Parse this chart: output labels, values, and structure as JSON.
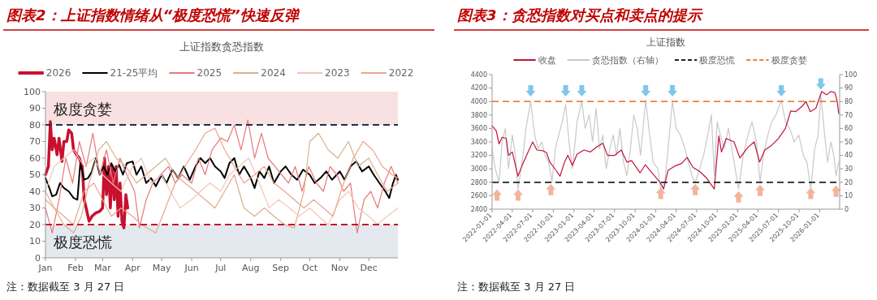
{
  "chart_data": [
    {
      "type": "line",
      "title": "图表2：上证指数情绪从“极度恐慌”快速反弹",
      "subtitle": "上证指数贪恐指数",
      "annotations": [
        "注：数据截至 3 月 27 日"
      ],
      "legend": "top",
      "xlim": [
        "--01-01",
        "--12-31"
      ],
      "xticks": [
        {
          "value": "--01-01",
          "label": "Jan"
        },
        {
          "value": "--02-01",
          "label": "Feb"
        },
        {
          "value": "--03-01",
          "label": "Mar"
        },
        {
          "value": "--04-01",
          "label": "Apr"
        },
        {
          "value": "--05-01",
          "label": "May"
        },
        {
          "value": "--06-01",
          "label": "Jun"
        },
        {
          "value": "--07-01",
          "label": "Jul"
        },
        {
          "value": "--08-01",
          "label": "Aug"
        },
        {
          "value": "--09-01",
          "label": "Sep"
        },
        {
          "value": "--10-01",
          "label": "Oct"
        },
        {
          "value": "--11-01",
          "label": "Nov"
        },
        {
          "value": "--12-01",
          "label": "Dec"
        }
      ],
      "ylim": [
        0,
        100
      ],
      "yticks": [
        0,
        10,
        20,
        30,
        40,
        50,
        60,
        70,
        80,
        90,
        100
      ],
      "bands": [
        {
          "axis": "y",
          "from": 80,
          "to": 100,
          "label": "极度贪婪",
          "color": "#f9e1e1"
        },
        {
          "axis": "y",
          "from": 0,
          "to": 20,
          "label": "极度恐慌",
          "color": "#e4e9ef"
        }
      ],
      "ref_lines": [
        {
          "axis": "y",
          "value": 80,
          "color": "#1f3048",
          "line_style": "dashed"
        },
        {
          "axis": "y",
          "value": 20,
          "color": "#c8102e",
          "line_style": "dashed"
        }
      ],
      "series": [
        {
          "name": "2026",
          "color": "#c8102e",
          "x": [
            "--01-01",
            "--01-04",
            "--01-06",
            "--01-08",
            "--01-10",
            "--01-13",
            "--01-15",
            "--01-18",
            "--01-20",
            "--01-23",
            "--01-25",
            "--01-28",
            "--01-30",
            "--02-02",
            "--02-05",
            "--02-08",
            "--02-10",
            "--02-12",
            "--02-15",
            "--02-18",
            "--02-22",
            "--02-26",
            "--03-01",
            "--03-03",
            "--03-05",
            "--03-07",
            "--03-09",
            "--03-11",
            "--03-13",
            "--03-15",
            "--03-17",
            "--03-19",
            "--03-21",
            "--03-23",
            "--03-25",
            "--03-27"
          ],
          "values": [
            50,
            55,
            82,
            65,
            72,
            62,
            72,
            58,
            70,
            70,
            77,
            75,
            65,
            62,
            60,
            55,
            35,
            30,
            22,
            25,
            27,
            28,
            30,
            60,
            38,
            55,
            30,
            55,
            35,
            55,
            25,
            45,
            22,
            18,
            38,
            30
          ]
        },
        {
          "name": "21-25平均",
          "color": "#000000",
          "x": [
            "--01-01",
            "--01-05",
            "--01-08",
            "--01-12",
            "--01-16",
            "--01-20",
            "--01-25",
            "--01-30",
            "--02-03",
            "--02-06",
            "--02-10",
            "--02-14",
            "--02-18",
            "--02-22",
            "--02-26",
            "--03-02",
            "--03-06",
            "--03-10",
            "--03-14",
            "--03-18",
            "--03-22",
            "--03-26",
            "--04-01",
            "--04-05",
            "--04-10",
            "--04-15",
            "--04-20",
            "--04-25",
            "--05-01",
            "--05-06",
            "--05-12",
            "--05-18",
            "--05-24",
            "--05-30",
            "--06-05",
            "--06-10",
            "--06-15",
            "--06-20",
            "--06-25",
            "--07-01",
            "--07-05",
            "--07-10",
            "--07-15",
            "--07-20",
            "--07-25",
            "--08-01",
            "--08-05",
            "--08-10",
            "--08-15",
            "--08-20",
            "--08-25",
            "--09-01",
            "--09-06",
            "--09-12",
            "--09-18",
            "--09-24",
            "--10-01",
            "--10-06",
            "--10-12",
            "--10-18",
            "--10-24",
            "--11-01",
            "--11-06",
            "--11-12",
            "--11-18",
            "--11-24",
            "--12-01",
            "--12-06",
            "--12-12",
            "--12-18",
            "--12-22",
            "--12-26",
            "--12-29",
            "--12-31"
          ],
          "values": [
            48,
            42,
            37,
            38,
            45,
            42,
            40,
            36,
            35,
            57,
            47,
            48,
            52,
            60,
            50,
            55,
            50,
            57,
            52,
            56,
            50,
            57,
            58,
            50,
            55,
            45,
            48,
            43,
            50,
            45,
            53,
            48,
            55,
            47,
            55,
            60,
            57,
            60,
            55,
            52,
            48,
            57,
            60,
            50,
            55,
            48,
            42,
            52,
            48,
            55,
            45,
            52,
            55,
            50,
            47,
            53,
            50,
            45,
            48,
            52,
            47,
            52,
            47,
            55,
            58,
            52,
            55,
            50,
            45,
            40,
            36,
            45,
            50,
            47
          ]
        },
        {
          "name": "2025",
          "color": "#e8787a",
          "x": [
            "--01-01",
            "--01-08",
            "--01-15",
            "--01-22",
            "--01-29",
            "--02-05",
            "--02-12",
            "--02-19",
            "--02-26",
            "--03-05",
            "--03-12",
            "--03-19",
            "--03-26",
            "--04-03",
            "--04-08",
            "--04-15",
            "--04-22",
            "--04-30",
            "--05-08",
            "--05-15",
            "--05-22",
            "--06-01",
            "--06-08",
            "--06-15",
            "--06-22",
            "--07-01",
            "--07-08",
            "--07-15",
            "--07-22",
            "--07-29",
            "--08-05",
            "--08-12",
            "--08-19",
            "--08-26",
            "--09-02",
            "--09-09",
            "--09-16",
            "--09-23",
            "--09-30",
            "--10-08",
            "--10-15",
            "--10-22",
            "--10-29",
            "--11-05",
            "--11-12",
            "--11-19",
            "--11-26",
            "--12-03",
            "--12-10",
            "--12-17",
            "--12-24",
            "--12-31"
          ],
          "values": [
            30,
            15,
            35,
            60,
            45,
            70,
            55,
            75,
            50,
            65,
            45,
            60,
            50,
            40,
            18,
            35,
            45,
            50,
            55,
            45,
            50,
            45,
            60,
            50,
            65,
            72,
            70,
            80,
            65,
            83,
            60,
            75,
            60,
            55,
            50,
            45,
            55,
            40,
            55,
            45,
            40,
            55,
            50,
            40,
            45,
            15,
            35,
            40,
            30,
            45,
            55,
            45
          ]
        },
        {
          "name": "2024",
          "color": "#d9b08c",
          "x": [
            "--01-01",
            "--01-10",
            "--01-20",
            "--01-30",
            "--02-07",
            "--02-15",
            "--02-25",
            "--03-05",
            "--03-15",
            "--03-25",
            "--04-05",
            "--04-15",
            "--04-25",
            "--05-05",
            "--05-15",
            "--05-25",
            "--06-05",
            "--06-15",
            "--06-25",
            "--07-05",
            "--07-15",
            "--07-25",
            "--08-05",
            "--08-15",
            "--08-25",
            "--09-05",
            "--09-15",
            "--09-25",
            "--10-01",
            "--10-10",
            "--10-20",
            "--10-30",
            "--11-10",
            "--11-20",
            "--12-01",
            "--12-10",
            "--12-20",
            "--12-31"
          ],
          "values": [
            40,
            30,
            20,
            15,
            25,
            45,
            65,
            70,
            60,
            55,
            45,
            50,
            55,
            60,
            50,
            45,
            40,
            35,
            30,
            40,
            50,
            30,
            25,
            30,
            25,
            20,
            18,
            40,
            70,
            75,
            65,
            60,
            70,
            55,
            60,
            50,
            40,
            45
          ]
        },
        {
          "name": "2023",
          "color": "#f3c6ba",
          "x": [
            "--01-01",
            "--01-10",
            "--01-20",
            "--01-30",
            "--02-10",
            "--02-20",
            "--03-01",
            "--03-10",
            "--03-20",
            "--04-01",
            "--04-10",
            "--04-20",
            "--05-01",
            "--05-10",
            "--05-20",
            "--06-01",
            "--06-10",
            "--06-20",
            "--07-01",
            "--07-10",
            "--07-20",
            "--07-30",
            "--08-10",
            "--08-20",
            "--08-30",
            "--09-10",
            "--09-20",
            "--10-01",
            "--10-10",
            "--10-20",
            "--11-01",
            "--11-10",
            "--11-20",
            "--12-01",
            "--12-10",
            "--12-20",
            "--12-31"
          ],
          "values": [
            40,
            55,
            60,
            65,
            55,
            60,
            50,
            45,
            40,
            55,
            60,
            45,
            50,
            40,
            30,
            35,
            40,
            45,
            40,
            50,
            55,
            60,
            45,
            30,
            35,
            30,
            25,
            30,
            25,
            20,
            35,
            40,
            30,
            25,
            20,
            25,
            30
          ]
        },
        {
          "name": "2022",
          "color": "#eba58c",
          "x": [
            "--01-01",
            "--01-10",
            "--01-20",
            "--01-30",
            "--02-10",
            "--02-20",
            "--03-01",
            "--03-10",
            "--03-20",
            "--04-01",
            "--04-10",
            "--04-25",
            "--05-05",
            "--05-15",
            "--05-25",
            "--06-05",
            "--06-15",
            "--06-25",
            "--07-05",
            "--07-15",
            "--07-25",
            "--08-05",
            "--08-15",
            "--08-25",
            "--09-05",
            "--09-15",
            "--09-25",
            "--10-05",
            "--10-15",
            "--10-25",
            "--11-05",
            "--11-15",
            "--11-25",
            "--12-05",
            "--12-15",
            "--12-25",
            "--12-31"
          ],
          "values": [
            35,
            30,
            25,
            20,
            40,
            45,
            35,
            25,
            30,
            25,
            20,
            15,
            30,
            45,
            55,
            65,
            75,
            78,
            65,
            55,
            45,
            50,
            55,
            45,
            40,
            35,
            30,
            35,
            30,
            25,
            45,
            60,
            70,
            65,
            55,
            50,
            48
          ]
        }
      ]
    },
    {
      "type": "line",
      "title": "图表3：贪恐指数对买点和卖点的提示",
      "subtitle": "上证指数",
      "annotations": [
        "注：数据截至 3 月 27 日"
      ],
      "legend": "top",
      "xlim": [
        "2022-01-01",
        "2026-03-31"
      ],
      "xticks": [
        "2022-01-01",
        "2022-04-01",
        "2022-07-01",
        "2022-10-01",
        "2023-01-01",
        "2023-04-01",
        "2023-07-01",
        "2023-10-01",
        "2024-01-01",
        "2024-04-01",
        "2024-07-01",
        "2024-10-01",
        "2025-01-01",
        "2025-04-01",
        "2025-07-01",
        "2025-10-01",
        "2026-01-01"
      ],
      "ylim": [
        2400,
        4400
      ],
      "yticks": [
        2400,
        2600,
        2800,
        3000,
        3200,
        3400,
        3600,
        3800,
        4000,
        4200,
        4400
      ],
      "y2lim": [
        0,
        100
      ],
      "y2ticks": [
        0,
        10,
        20,
        30,
        40,
        50,
        60,
        70,
        80,
        90,
        100
      ],
      "ref_lines": [
        {
          "axis": "y2",
          "value": 20,
          "label": "极度恐慌",
          "color": "#222222",
          "line_style": "dashed"
        },
        {
          "axis": "y2",
          "value": 80,
          "label": "极度贪婪",
          "color": "#f07f3c",
          "line_style": "dashed"
        }
      ],
      "series": [
        {
          "name": "贪恐指数（右轴）",
          "color": "#c9c9c9",
          "axis": "y2",
          "x": [
            "2022-01-01",
            "2022-01-15",
            "2022-02-01",
            "2022-02-15",
            "2022-03-01",
            "2022-03-15",
            "2022-04-01",
            "2022-04-15",
            "2022-04-27",
            "2022-05-15",
            "2022-06-01",
            "2022-06-22",
            "2022-07-10",
            "2022-07-25",
            "2022-08-10",
            "2022-08-25",
            "2022-09-10",
            "2022-09-25",
            "2022-10-10",
            "2022-10-25",
            "2022-11-10",
            "2022-11-25",
            "2022-12-10",
            "2022-12-25",
            "2023-01-15",
            "2023-02-05",
            "2023-02-20",
            "2023-03-10",
            "2023-03-25",
            "2023-04-10",
            "2023-04-25",
            "2023-05-10",
            "2023-05-25",
            "2023-06-10",
            "2023-06-25",
            "2023-07-10",
            "2023-07-25",
            "2023-08-10",
            "2023-08-25",
            "2023-09-10",
            "2023-09-25",
            "2023-10-10",
            "2023-10-25",
            "2023-11-17",
            "2023-12-05",
            "2023-12-20",
            "2024-01-10",
            "2024-01-23",
            "2024-02-10",
            "2024-02-25",
            "2024-03-15",
            "2024-04-01",
            "2024-04-20",
            "2024-05-10",
            "2024-05-25",
            "2024-06-10",
            "2024-06-25",
            "2024-07-15",
            "2024-08-01",
            "2024-08-20",
            "2024-09-05",
            "2024-09-18",
            "2024-10-01",
            "2024-10-15",
            "2024-11-01",
            "2024-11-20",
            "2024-12-10",
            "2025-01-04",
            "2025-01-25",
            "2025-02-15",
            "2025-03-05",
            "2025-03-25",
            "2025-04-10",
            "2025-04-25",
            "2025-05-15",
            "2025-06-01",
            "2025-06-20",
            "2025-07-14",
            "2025-08-01",
            "2025-08-20",
            "2025-09-10",
            "2025-09-30",
            "2025-10-20",
            "2025-11-05",
            "2025-11-22",
            "2025-12-10",
            "2025-12-25",
            "2026-01-06",
            "2026-01-20",
            "2026-02-05",
            "2026-02-20",
            "2026-03-05",
            "2026-03-15",
            "2026-03-27"
          ],
          "values": [
            45,
            30,
            20,
            50,
            60,
            30,
            55,
            40,
            15,
            35,
            60,
            80,
            55,
            45,
            50,
            40,
            35,
            20,
            45,
            55,
            65,
            78,
            50,
            30,
            65,
            80,
            60,
            70,
            50,
            75,
            45,
            55,
            30,
            45,
            55,
            40,
            60,
            35,
            25,
            45,
            70,
            60,
            40,
            81,
            55,
            35,
            30,
            15,
            20,
            45,
            80,
            60,
            55,
            45,
            35,
            25,
            20,
            30,
            40,
            55,
            70,
            25,
            65,
            55,
            45,
            60,
            40,
            15,
            40,
            55,
            65,
            50,
            20,
            40,
            55,
            65,
            70,
            81,
            65,
            60,
            50,
            55,
            40,
            35,
            15,
            45,
            55,
            85,
            60,
            35,
            50,
            40,
            25,
            35
          ]
        },
        {
          "name": "收盘",
          "color": "#c0143c",
          "x": [
            "2022-01-01",
            "2022-01-20",
            "2022-02-01",
            "2022-02-15",
            "2022-03-05",
            "2022-03-15",
            "2022-04-01",
            "2022-04-26",
            "2022-05-15",
            "2022-06-01",
            "2022-07-01",
            "2022-07-20",
            "2022-08-15",
            "2022-09-01",
            "2022-09-15",
            "2022-10-10",
            "2022-10-31",
            "2022-11-20",
            "2022-12-05",
            "2022-12-25",
            "2023-01-15",
            "2023-02-15",
            "2023-03-15",
            "2023-04-15",
            "2023-05-10",
            "2023-05-31",
            "2023-07-01",
            "2023-07-31",
            "2023-08-25",
            "2023-09-15",
            "2023-10-23",
            "2023-11-15",
            "2023-12-20",
            "2024-01-20",
            "2024-02-05",
            "2024-02-25",
            "2024-03-25",
            "2024-04-25",
            "2024-05-20",
            "2024-06-15",
            "2024-07-15",
            "2024-08-15",
            "2024-09-18",
            "2024-10-08",
            "2024-10-20",
            "2024-11-10",
            "2024-12-15",
            "2025-01-10",
            "2025-02-15",
            "2025-03-15",
            "2025-04-08",
            "2025-05-01",
            "2025-06-01",
            "2025-07-01",
            "2025-08-01",
            "2025-08-25",
            "2025-09-15",
            "2025-10-15",
            "2025-11-01",
            "2025-11-20",
            "2025-12-15",
            "2026-01-10",
            "2026-02-01",
            "2026-02-20",
            "2026-03-10",
            "2026-03-20",
            "2026-03-27"
          ],
          "values": [
            3640,
            3560,
            3370,
            3470,
            3450,
            3200,
            3250,
            2890,
            3050,
            3180,
            3400,
            3280,
            3270,
            3240,
            3100,
            2990,
            2890,
            3100,
            3200,
            3050,
            3220,
            3280,
            3250,
            3330,
            3380,
            3200,
            3200,
            3280,
            3100,
            3120,
            2940,
            3060,
            2920,
            2800,
            2700,
            2980,
            3040,
            3080,
            3170,
            3020,
            2960,
            2860,
            2700,
            3490,
            3250,
            3450,
            3400,
            3160,
            3320,
            3400,
            3100,
            3280,
            3350,
            3450,
            3600,
            3860,
            3850,
            3930,
            4000,
            3850,
            3900,
            4150,
            4100,
            4150,
            4130,
            4000,
            3820
          ]
        },
        {
          "type": "scatter",
          "marker": "triangle",
          "color": "#7ec8e8",
          "axis": "y2",
          "x": [
            "2022-06-22",
            "2022-11-25",
            "2023-02-05",
            "2023-11-17",
            "2024-03-15",
            "2025-07-14",
            "2026-01-06"
          ],
          "values": [
            88,
            88,
            88,
            88,
            88,
            88,
            93
          ]
        },
        {
          "type": "scatter",
          "marker": "triangle",
          "color": "#f4b39a",
          "axis": "y2",
          "x": [
            "2022-01-23",
            "2022-04-27",
            "2022-09-20",
            "2024-01-23",
            "2024-06-25",
            "2025-01-04",
            "2025-04-10",
            "2025-11-22",
            "2026-03-15"
          ],
          "values": [
            10.5,
            10.5,
            14.6,
            11.8,
            14.6,
            9.2,
            14,
            11.8,
            13.4
          ]
        }
      ]
    }
  ]
}
